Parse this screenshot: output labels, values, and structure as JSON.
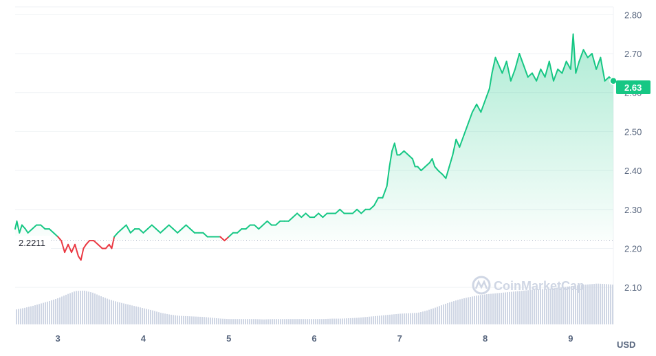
{
  "chart_data": {
    "type": "line",
    "y_ticks": [
      "2.80",
      "2.70",
      "2.60",
      "2.50",
      "2.40",
      "2.30",
      "2.20",
      "2.10"
    ],
    "ylim": [
      2.005,
      2.82
    ],
    "x_ticks": [
      {
        "label": "3",
        "x": 3
      },
      {
        "label": "4",
        "x": 4
      },
      {
        "label": "5",
        "x": 5
      },
      {
        "label": "6",
        "x": 6
      },
      {
        "label": "7",
        "x": 7
      },
      {
        "label": "8",
        "x": 8
      },
      {
        "label": "9",
        "x": 9
      }
    ],
    "xlim": [
      2.5,
      9.5
    ],
    "reference_value": 2.2211,
    "reference_label": "2.2211",
    "last_price_label": "2.63",
    "unit_label": "USD",
    "watermark": "CoinMarketCap",
    "colors": {
      "up": "#16c784",
      "down": "#ea3943",
      "volume": "#cfd6e4",
      "badge": "#16c784",
      "grid": "#eff2f5"
    },
    "series": [
      {
        "values": [
          [
            2.5,
            2.25
          ],
          [
            2.52,
            2.27
          ],
          [
            2.55,
            2.24
          ],
          [
            2.58,
            2.26
          ],
          [
            2.62,
            2.25
          ],
          [
            2.65,
            2.24
          ],
          [
            2.7,
            2.25
          ],
          [
            2.75,
            2.26
          ],
          [
            2.8,
            2.26
          ],
          [
            2.85,
            2.25
          ],
          [
            2.9,
            2.25
          ],
          [
            2.95,
            2.24
          ],
          [
            3.0,
            2.23
          ],
          [
            3.04,
            2.22
          ],
          [
            3.08,
            2.19
          ],
          [
            3.12,
            2.21
          ],
          [
            3.16,
            2.19
          ],
          [
            3.2,
            2.21
          ],
          [
            3.24,
            2.18
          ],
          [
            3.27,
            2.17
          ],
          [
            3.3,
            2.2
          ],
          [
            3.33,
            2.21
          ],
          [
            3.37,
            2.22
          ],
          [
            3.42,
            2.22
          ],
          [
            3.47,
            2.21
          ],
          [
            3.52,
            2.2
          ],
          [
            3.56,
            2.2
          ],
          [
            3.6,
            2.21
          ],
          [
            3.63,
            2.2
          ],
          [
            3.66,
            2.23
          ],
          [
            3.7,
            2.24
          ],
          [
            3.75,
            2.25
          ],
          [
            3.8,
            2.26
          ],
          [
            3.85,
            2.24
          ],
          [
            3.9,
            2.25
          ],
          [
            3.95,
            2.25
          ],
          [
            4.0,
            2.24
          ],
          [
            4.05,
            2.25
          ],
          [
            4.1,
            2.26
          ],
          [
            4.15,
            2.25
          ],
          [
            4.2,
            2.24
          ],
          [
            4.25,
            2.25
          ],
          [
            4.3,
            2.26
          ],
          [
            4.35,
            2.25
          ],
          [
            4.4,
            2.24
          ],
          [
            4.45,
            2.25
          ],
          [
            4.5,
            2.26
          ],
          [
            4.55,
            2.25
          ],
          [
            4.6,
            2.24
          ],
          [
            4.65,
            2.24
          ],
          [
            4.7,
            2.24
          ],
          [
            4.75,
            2.23
          ],
          [
            4.8,
            2.23
          ],
          [
            4.85,
            2.23
          ],
          [
            4.9,
            2.23
          ],
          [
            4.95,
            2.22
          ],
          [
            5.0,
            2.23
          ],
          [
            5.05,
            2.24
          ],
          [
            5.1,
            2.24
          ],
          [
            5.15,
            2.25
          ],
          [
            5.2,
            2.25
          ],
          [
            5.25,
            2.26
          ],
          [
            5.3,
            2.26
          ],
          [
            5.35,
            2.25
          ],
          [
            5.4,
            2.26
          ],
          [
            5.45,
            2.27
          ],
          [
            5.5,
            2.26
          ],
          [
            5.55,
            2.26
          ],
          [
            5.6,
            2.27
          ],
          [
            5.65,
            2.27
          ],
          [
            5.7,
            2.27
          ],
          [
            5.75,
            2.28
          ],
          [
            5.8,
            2.29
          ],
          [
            5.85,
            2.28
          ],
          [
            5.9,
            2.29
          ],
          [
            5.95,
            2.28
          ],
          [
            6.0,
            2.28
          ],
          [
            6.05,
            2.29
          ],
          [
            6.1,
            2.28
          ],
          [
            6.15,
            2.29
          ],
          [
            6.2,
            2.29
          ],
          [
            6.25,
            2.29
          ],
          [
            6.3,
            2.3
          ],
          [
            6.35,
            2.29
          ],
          [
            6.4,
            2.29
          ],
          [
            6.45,
            2.29
          ],
          [
            6.5,
            2.3
          ],
          [
            6.55,
            2.29
          ],
          [
            6.6,
            2.3
          ],
          [
            6.65,
            2.3
          ],
          [
            6.7,
            2.31
          ],
          [
            6.75,
            2.33
          ],
          [
            6.8,
            2.33
          ],
          [
            6.85,
            2.36
          ],
          [
            6.88,
            2.41
          ],
          [
            6.91,
            2.45
          ],
          [
            6.94,
            2.47
          ],
          [
            6.97,
            2.44
          ],
          [
            7.0,
            2.44
          ],
          [
            7.05,
            2.45
          ],
          [
            7.1,
            2.44
          ],
          [
            7.15,
            2.43
          ],
          [
            7.18,
            2.41
          ],
          [
            7.21,
            2.41
          ],
          [
            7.25,
            2.4
          ],
          [
            7.3,
            2.41
          ],
          [
            7.35,
            2.42
          ],
          [
            7.38,
            2.43
          ],
          [
            7.41,
            2.41
          ],
          [
            7.45,
            2.4
          ],
          [
            7.5,
            2.39
          ],
          [
            7.54,
            2.38
          ],
          [
            7.58,
            2.41
          ],
          [
            7.62,
            2.44
          ],
          [
            7.66,
            2.48
          ],
          [
            7.7,
            2.46
          ],
          [
            7.75,
            2.49
          ],
          [
            7.8,
            2.52
          ],
          [
            7.85,
            2.55
          ],
          [
            7.9,
            2.57
          ],
          [
            7.95,
            2.55
          ],
          [
            8.0,
            2.58
          ],
          [
            8.05,
            2.61
          ],
          [
            8.08,
            2.65
          ],
          [
            8.12,
            2.69
          ],
          [
            8.16,
            2.67
          ],
          [
            8.2,
            2.65
          ],
          [
            8.25,
            2.68
          ],
          [
            8.3,
            2.63
          ],
          [
            8.35,
            2.66
          ],
          [
            8.4,
            2.7
          ],
          [
            8.45,
            2.67
          ],
          [
            8.5,
            2.64
          ],
          [
            8.55,
            2.65
          ],
          [
            8.6,
            2.63
          ],
          [
            8.65,
            2.66
          ],
          [
            8.7,
            2.64
          ],
          [
            8.75,
            2.68
          ],
          [
            8.8,
            2.63
          ],
          [
            8.85,
            2.66
          ],
          [
            8.9,
            2.65
          ],
          [
            8.95,
            2.68
          ],
          [
            9.0,
            2.66
          ],
          [
            9.03,
            2.75
          ],
          [
            9.06,
            2.65
          ],
          [
            9.1,
            2.68
          ],
          [
            9.15,
            2.71
          ],
          [
            9.2,
            2.69
          ],
          [
            9.25,
            2.7
          ],
          [
            9.3,
            2.66
          ],
          [
            9.35,
            2.69
          ],
          [
            9.4,
            2.63
          ],
          [
            9.45,
            2.64
          ],
          [
            9.5,
            2.63
          ]
        ]
      }
    ],
    "volume": [
      [
        2.5,
        0.36
      ],
      [
        2.6,
        0.4
      ],
      [
        2.7,
        0.45
      ],
      [
        2.8,
        0.51
      ],
      [
        2.9,
        0.57
      ],
      [
        3.0,
        0.64
      ],
      [
        3.1,
        0.73
      ],
      [
        3.2,
        0.81
      ],
      [
        3.3,
        0.82
      ],
      [
        3.4,
        0.77
      ],
      [
        3.5,
        0.68
      ],
      [
        3.6,
        0.6
      ],
      [
        3.7,
        0.54
      ],
      [
        3.8,
        0.49
      ],
      [
        3.9,
        0.44
      ],
      [
        4.0,
        0.39
      ],
      [
        4.1,
        0.34
      ],
      [
        4.2,
        0.28
      ],
      [
        4.3,
        0.24
      ],
      [
        4.4,
        0.21
      ],
      [
        4.5,
        0.2
      ],
      [
        4.6,
        0.19
      ],
      [
        4.7,
        0.18
      ],
      [
        4.8,
        0.16
      ],
      [
        4.9,
        0.14
      ],
      [
        5.0,
        0.13
      ],
      [
        5.1,
        0.13
      ],
      [
        5.2,
        0.13
      ],
      [
        5.3,
        0.13
      ],
      [
        5.4,
        0.12
      ],
      [
        5.5,
        0.13
      ],
      [
        5.6,
        0.13
      ],
      [
        5.7,
        0.13
      ],
      [
        5.8,
        0.13
      ],
      [
        5.9,
        0.13
      ],
      [
        6.0,
        0.13
      ],
      [
        6.1,
        0.13
      ],
      [
        6.2,
        0.14
      ],
      [
        6.3,
        0.14
      ],
      [
        6.4,
        0.15
      ],
      [
        6.5,
        0.16
      ],
      [
        6.6,
        0.18
      ],
      [
        6.7,
        0.2
      ],
      [
        6.8,
        0.22
      ],
      [
        6.9,
        0.24
      ],
      [
        7.0,
        0.26
      ],
      [
        7.1,
        0.27
      ],
      [
        7.2,
        0.28
      ],
      [
        7.3,
        0.33
      ],
      [
        7.4,
        0.4
      ],
      [
        7.5,
        0.48
      ],
      [
        7.6,
        0.55
      ],
      [
        7.7,
        0.61
      ],
      [
        7.8,
        0.66
      ],
      [
        7.9,
        0.7
      ],
      [
        8.0,
        0.73
      ],
      [
        8.1,
        0.75
      ],
      [
        8.2,
        0.77
      ],
      [
        8.3,
        0.79
      ],
      [
        8.4,
        0.81
      ],
      [
        8.5,
        0.83
      ],
      [
        8.6,
        0.85
      ],
      [
        8.7,
        0.86
      ],
      [
        8.8,
        0.88
      ],
      [
        8.9,
        0.9
      ],
      [
        9.0,
        0.93
      ],
      [
        9.1,
        0.95
      ],
      [
        9.2,
        0.97
      ],
      [
        9.3,
        0.99
      ],
      [
        9.4,
        0.98
      ],
      [
        9.5,
        0.96
      ]
    ]
  }
}
